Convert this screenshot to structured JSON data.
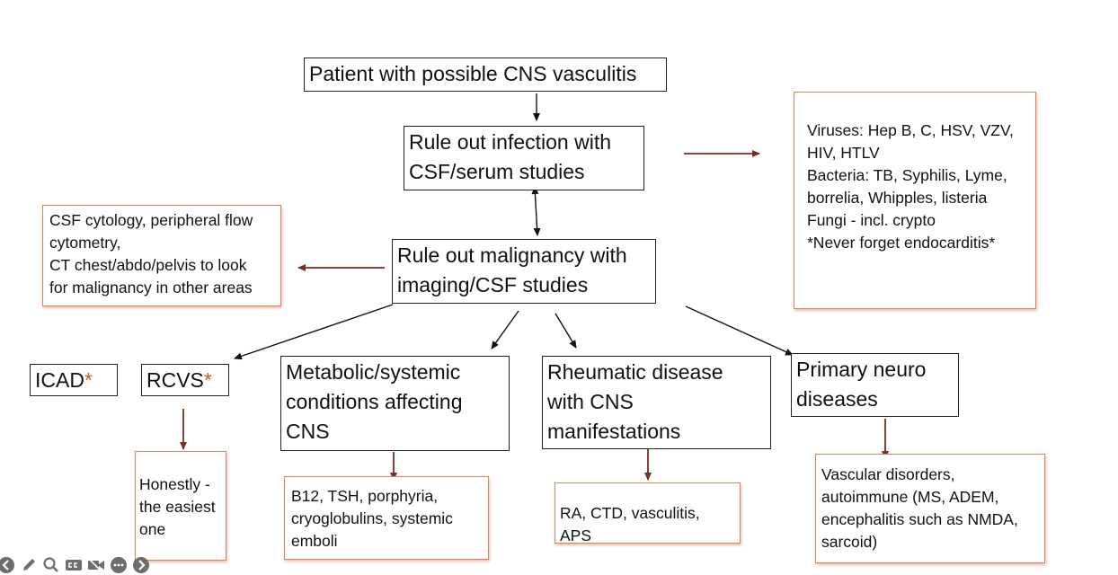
{
  "nodes": {
    "root": "Patient with possible CNS vasculitis",
    "infection": [
      "Rule out infection with",
      "CSF/serum studies"
    ],
    "infection_detail": [
      "Viruses: Hep B, C, HSV, VZV,",
      "HIV, HTLV",
      "Bacteria: TB, Syphilis, Lyme,",
      "borrelia, Whipples, listeria",
      "Fungi - incl. crypto",
      "*Never forget endocarditis*"
    ],
    "malignancy": [
      "Rule out malignancy with",
      "imaging/CSF studies"
    ],
    "malignancy_detail": [
      "CSF cytology, peripheral flow",
      "cytometry,",
      "CT chest/abdo/pelvis to look",
      "for malignancy in other areas"
    ],
    "icad": "ICAD",
    "rcvs": "RCVS",
    "asterisk": "*",
    "rcvs_detail": [
      "Honestly -",
      "the easiest",
      "one"
    ],
    "metabolic": [
      "Metabolic/systemic",
      "conditions affecting",
      "CNS"
    ],
    "metabolic_detail": [
      "B12, TSH, porphyria,",
      "cryoglobulins, systemic",
      "emboli"
    ],
    "rheumatic": [
      "Rheumatic disease",
      "with CNS",
      "manifestations"
    ],
    "rheumatic_detail": "RA, CTD, vasculitis, APS",
    "neuro": [
      "Primary neuro",
      "diseases"
    ],
    "neuro_detail": [
      "Vascular disorders,",
      "autoimmune (MS, ADEM,",
      "encephalitis such as NMDA,",
      "sarcoid)"
    ]
  },
  "colors": {
    "black_arrow": "#111111",
    "red_arrow": "#7a2e1f",
    "orange_border": "#d9825b",
    "asterisk": "#d4532a"
  },
  "toolbar_icons": [
    "back-icon",
    "pen-icon",
    "zoom-icon",
    "captions-icon",
    "camera-off-icon",
    "more-icon",
    "forward-icon"
  ]
}
